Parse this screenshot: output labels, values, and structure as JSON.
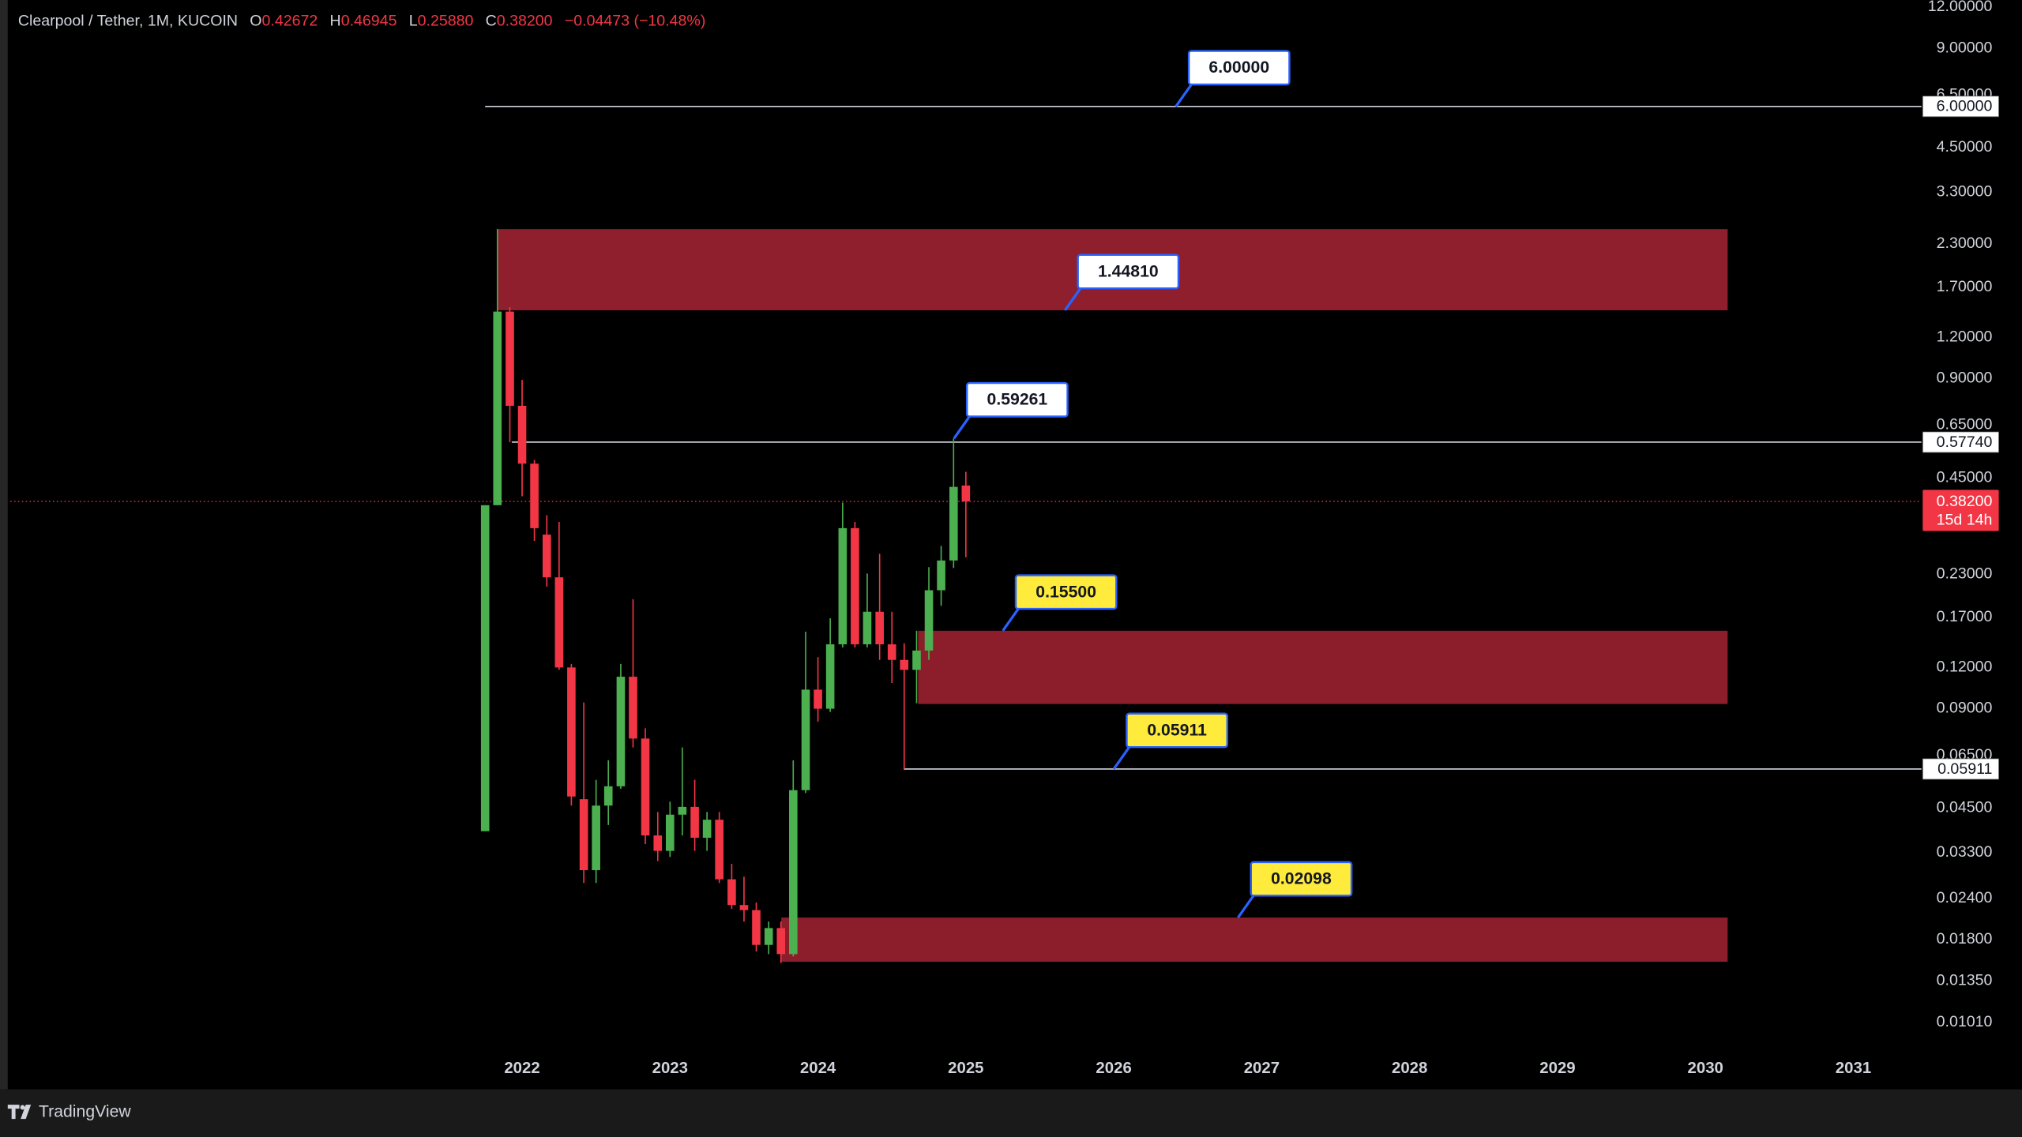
{
  "chart_data": {
    "type": "candlestick",
    "title": "Clearpool / Tether, 1M, KUCOIN",
    "ohlc_labels": [
      "O",
      "H",
      "L",
      "C"
    ],
    "header_ohlc": [
      "0.42672",
      "0.46945",
      "0.25880",
      "0.38200"
    ],
    "change": "−0.04473 (−10.48%)",
    "x": [
      2021.75,
      2021.833,
      2021.917,
      2022.0,
      2022.083,
      2022.167,
      2022.25,
      2022.333,
      2022.417,
      2022.5,
      2022.583,
      2022.667,
      2022.75,
      2022.833,
      2022.917,
      2023.0,
      2023.083,
      2023.167,
      2023.25,
      2023.333,
      2023.417,
      2023.5,
      2023.583,
      2023.667,
      2023.75,
      2023.833,
      2023.917,
      2024.0,
      2024.083,
      2024.167,
      2024.25,
      2024.333,
      2024.417,
      2024.5,
      2024.583,
      2024.667,
      2024.75,
      2024.833,
      2024.917,
      2025.0
    ],
    "open": [
      0.0383,
      0.372,
      1.435,
      0.744,
      0.497,
      0.303,
      0.225,
      0.12,
      0.0479,
      0.0292,
      0.0458,
      0.0524,
      0.1125,
      0.0731,
      0.0372,
      0.0334,
      0.043,
      0.0454,
      0.0366,
      0.0415,
      0.0274,
      0.0229,
      0.0221,
      0.01734,
      0.0195,
      0.01626,
      0.051,
      0.1028,
      0.09,
      0.141,
      0.317,
      0.141,
      0.177,
      0.141,
      0.1265,
      0.118,
      0.135,
      0.2056,
      0.253,
      0.42672
    ],
    "high": [
      0.372,
      2.55,
      1.48,
      0.891,
      0.51,
      0.347,
      0.331,
      0.123,
      0.094,
      0.0548,
      0.0628,
      0.123,
      0.193,
      0.0785,
      0.0438,
      0.0471,
      0.0687,
      0.0548,
      0.0438,
      0.0438,
      0.0305,
      0.0279,
      0.0233,
      0.0204,
      0.0204,
      0.0628,
      0.154,
      0.129,
      0.169,
      0.379,
      0.331,
      0.231,
      0.265,
      0.177,
      0.142,
      0.155,
      0.2415,
      0.28,
      0.59261,
      0.46945
    ],
    "low": [
      0.0383,
      0.372,
      0.5774,
      0.396,
      0.29,
      0.211,
      0.118,
      0.0458,
      0.0267,
      0.0267,
      0.04,
      0.0515,
      0.0687,
      0.035,
      0.0311,
      0.032,
      0.0372,
      0.0334,
      0.0334,
      0.0267,
      0.0223,
      0.0204,
      0.01656,
      0.01626,
      0.01528,
      0.016,
      0.05,
      0.0822,
      0.088,
      0.138,
      0.138,
      0.138,
      0.1265,
      0.1077,
      0.05911,
      0.0935,
      0.1265,
      0.1845,
      0.24,
      0.2588
    ],
    "close": [
      0.372,
      1.435,
      0.744,
      0.497,
      0.317,
      0.225,
      0.12,
      0.0488,
      0.0292,
      0.0458,
      0.0524,
      0.1125,
      0.0731,
      0.0372,
      0.0334,
      0.043,
      0.0454,
      0.0366,
      0.0415,
      0.0274,
      0.0229,
      0.0221,
      0.01734,
      0.0195,
      0.01626,
      0.051,
      0.1028,
      0.09,
      0.141,
      0.317,
      0.141,
      0.177,
      0.141,
      0.1265,
      0.118,
      0.135,
      0.2056,
      0.253,
      0.4227,
      0.382
    ],
    "up_color": "#4caf50",
    "down_color": "#f23645",
    "log_scale": true,
    "ylim": [
      0.00645,
      12.6
    ],
    "yticks": [
      {
        "value": 12,
        "label": "12.00000"
      },
      {
        "value": 9,
        "label": "9.00000"
      },
      {
        "value": 6.5,
        "label": "6.50000"
      },
      {
        "value": 4.5,
        "label": "4.50000"
      },
      {
        "value": 3.3,
        "label": "3.30000"
      },
      {
        "value": 2.3,
        "label": "2.30000"
      },
      {
        "value": 1.7,
        "label": "1.70000"
      },
      {
        "value": 1.2,
        "label": "1.20000"
      },
      {
        "value": 0.9,
        "label": "0.90000"
      },
      {
        "value": 0.65,
        "label": "0.65000"
      },
      {
        "value": 0.45,
        "label": "0.45000"
      },
      {
        "value": 0.23,
        "label": "0.23000"
      },
      {
        "value": 0.17,
        "label": "0.17000"
      },
      {
        "value": 0.12,
        "label": "0.12000"
      },
      {
        "value": 0.09,
        "label": "0.09000"
      },
      {
        "value": 0.065,
        "label": "0.06500"
      },
      {
        "value": 0.045,
        "label": "0.04500"
      },
      {
        "value": 0.033,
        "label": "0.03300"
      },
      {
        "value": 0.024,
        "label": "0.02400"
      },
      {
        "value": 0.018,
        "label": "0.01800"
      },
      {
        "value": 0.0135,
        "label": "0.01350"
      },
      {
        "value": 0.0101,
        "label": "0.01010"
      }
    ],
    "xlim": [
      2018.54,
      2031.46
    ],
    "xticks": [
      2022,
      2023,
      2024,
      2025,
      2026,
      2027,
      2028,
      2029,
      2030,
      2031
    ],
    "zones": [
      {
        "top": 2.55,
        "bottom": 1.4481,
        "x": [
          2021.834,
          2030.15
        ],
        "color": "#8f1f2c"
      },
      {
        "top": 0.155,
        "bottom": 0.093,
        "x": [
          2024.677,
          2030.15
        ],
        "color": "#8b1e2a"
      },
      {
        "top": 0.02098,
        "bottom": 0.01542,
        "x": [
          2023.752,
          2030.15
        ],
        "color": "#8b1e2a"
      }
    ],
    "levels": [
      {
        "value": 6,
        "label": "6.00000",
        "x": 2021.75
      },
      {
        "value": 0.5774,
        "label": "0.57740",
        "x": 2021.93
      },
      {
        "value": 0.05911,
        "label": "0.05911",
        "x": 2024.58
      }
    ],
    "annotations": [
      {
        "value": 6,
        "label": "6.00000",
        "x": 2026.42,
        "color": "#ffffff"
      },
      {
        "value": 1.4481,
        "label": "1.44810",
        "x": 2025.67,
        "color": "#ffffff"
      },
      {
        "value": 0.59261,
        "label": "0.59261",
        "x": 2024.92,
        "color": "#ffffff"
      },
      {
        "value": 0.155,
        "label": "0.15500",
        "x": 2025.25,
        "color": "#ffeb3b"
      },
      {
        "value": 0.05911,
        "label": "0.05911",
        "x": 2026.0,
        "color": "#ffeb3b"
      },
      {
        "value": 0.02098,
        "label": "0.02098",
        "x": 2026.84,
        "color": "#ffeb3b"
      }
    ],
    "last_price": {
      "value": 0.382,
      "label": "0.38200",
      "countdown": "15d 14h",
      "color": "#f23645"
    }
  },
  "footer": {
    "brand": "TradingView"
  }
}
